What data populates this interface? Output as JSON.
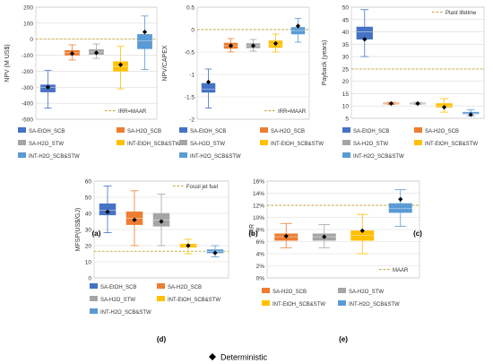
{
  "figure": {
    "deterministic_label": "Deterministic"
  },
  "colors": {
    "SA-EtOH_SCB": "#4472c4",
    "SA-H2O_SCB": "#ed7d31",
    "SA-H2O_STW": "#a5a5a5",
    "INT-EtOH_SCB&STW": "#ffc000",
    "INT-H2O_SCB&STW": "#5b9bd5",
    "reference_line": "#c9a227",
    "marker": "#000000"
  },
  "chart_data": [
    {
      "id": "a",
      "panel_label": "(a)",
      "type": "box",
      "ylabel": "NPV (M US$)",
      "ylim": [
        -500,
        200
      ],
      "yticks": [
        -500,
        -400,
        -300,
        -200,
        -100,
        0,
        100,
        200
      ],
      "reference": {
        "label": "IRR=MAAR",
        "value": 0
      },
      "series": [
        {
          "name": "SA-EtOH_SCB",
          "min": -430,
          "q1": -330,
          "median": -300,
          "q3": -285,
          "max": -195,
          "deterministic": -300
        },
        {
          "name": "SA-H2O_SCB",
          "min": -130,
          "q1": -100,
          "median": -85,
          "q3": -70,
          "max": -35,
          "deterministic": -90
        },
        {
          "name": "SA-H2O_STW",
          "min": -120,
          "q1": -95,
          "median": -80,
          "q3": -65,
          "max": -30,
          "deterministic": -85
        },
        {
          "name": "INT-EtOH_SCB&STW",
          "min": -310,
          "q1": -200,
          "median": -170,
          "q3": -140,
          "max": -45,
          "deterministic": -160
        },
        {
          "name": "INT-H2O_SCB&STW",
          "min": -190,
          "q1": -60,
          "median": -10,
          "q3": 30,
          "max": 145,
          "deterministic": 45
        }
      ]
    },
    {
      "id": "b",
      "panel_label": "(b)",
      "type": "box",
      "ylabel": "NPV/CAPEX",
      "ylim": [
        -2,
        0.5
      ],
      "yticks": [
        -2,
        -1.5,
        -1,
        -0.5,
        0,
        0.5
      ],
      "reference": {
        "label": "IRR=MAAR",
        "value": 0
      },
      "series": [
        {
          "name": "SA-EtOH_SCB",
          "min": -1.75,
          "q1": -1.4,
          "median": -1.33,
          "q3": -1.2,
          "max": -0.88,
          "deterministic": -1.17
        },
        {
          "name": "SA-H2O_SCB",
          "min": -0.5,
          "q1": -0.42,
          "median": -0.36,
          "q3": -0.3,
          "max": -0.2,
          "deterministic": -0.36
        },
        {
          "name": "SA-H2O_STW",
          "min": -0.48,
          "q1": -0.41,
          "median": -0.36,
          "q3": -0.31,
          "max": -0.22,
          "deterministic": -0.36
        },
        {
          "name": "INT-EtOH_SCB&STW",
          "min": -0.5,
          "q1": -0.4,
          "median": -0.34,
          "q3": -0.25,
          "max": -0.1,
          "deterministic": -0.31
        },
        {
          "name": "INT-H2O_SCB&STW",
          "min": -0.28,
          "q1": -0.1,
          "median": -0.02,
          "q3": 0.05,
          "max": 0.25,
          "deterministic": 0.08
        }
      ]
    },
    {
      "id": "c",
      "panel_label": "(c)",
      "type": "box",
      "ylabel": "Payback (years)",
      "ylim": [
        5,
        50
      ],
      "yticks": [
        5,
        10,
        15,
        20,
        25,
        30,
        35,
        40,
        45,
        50
      ],
      "reference": {
        "label": "Plant lifetime",
        "value": 25
      },
      "series": [
        {
          "name": "SA-EtOH_SCB",
          "min": 30,
          "q1": 37,
          "median": 40,
          "q3": 42,
          "max": 49,
          "deterministic": 37
        },
        {
          "name": "SA-H2O_SCB",
          "min": 10.6,
          "q1": 10.8,
          "median": 11,
          "q3": 11.2,
          "max": 11.5,
          "deterministic": 11
        },
        {
          "name": "SA-H2O_STW",
          "min": 10.6,
          "q1": 10.8,
          "median": 11,
          "q3": 11.2,
          "max": 11.5,
          "deterministic": 11
        },
        {
          "name": "INT-EtOH_SCB&STW",
          "min": 7.5,
          "q1": 9.5,
          "median": 10,
          "q3": 11,
          "max": 13,
          "deterministic": 9.5
        },
        {
          "name": "INT-H2O_SCB&STW",
          "min": 6,
          "q1": 6.8,
          "median": 7,
          "q3": 7.5,
          "max": 8.5,
          "deterministic": 6.5
        }
      ]
    },
    {
      "id": "d",
      "panel_label": "(d)",
      "type": "box",
      "ylabel": "MFSP(US$/GJ)",
      "ylim": [
        0,
        60
      ],
      "yticks": [
        0,
        10,
        20,
        30,
        40,
        50,
        60
      ],
      "reference": {
        "label": "Fossil jet fuel",
        "value": 16.5
      },
      "series": [
        {
          "name": "SA-EtOH_SCB",
          "min": 28,
          "q1": 39,
          "median": 42,
          "q3": 46,
          "max": 57,
          "deterministic": 41
        },
        {
          "name": "SA-H2O_SCB",
          "min": 20,
          "q1": 33,
          "median": 37,
          "q3": 41,
          "max": 54,
          "deterministic": 36
        },
        {
          "name": "SA-H2O_STW",
          "min": 20,
          "q1": 32,
          "median": 36,
          "q3": 40,
          "max": 52,
          "deterministic": 35
        },
        {
          "name": "INT-EtOH_SCB&STW",
          "min": 15,
          "q1": 19,
          "median": 20,
          "q3": 21,
          "max": 24,
          "deterministic": 20
        },
        {
          "name": "INT-H2O_SCB&STW",
          "min": 13,
          "q1": 15.5,
          "median": 16.5,
          "q3": 17.5,
          "max": 20,
          "deterministic": 15.5
        }
      ]
    },
    {
      "id": "e",
      "panel_label": "(e)",
      "type": "box",
      "ylabel": "IRR",
      "ylim": [
        0,
        16
      ],
      "yticks": [
        "0%",
        "2%",
        "4%",
        "6%",
        "8%",
        "10%",
        "12%",
        "14%",
        "16%"
      ],
      "ytick_values": [
        0,
        2,
        4,
        6,
        8,
        10,
        12,
        14,
        16
      ],
      "reference": {
        "label": "MAAR",
        "value": 12
      },
      "series": [
        {
          "name": "SA-H2O_SCB",
          "min": 5,
          "q1": 6.2,
          "median": 6.8,
          "q3": 7.3,
          "max": 9,
          "deterministic": 6.9
        },
        {
          "name": "SA-H2O_STW",
          "min": 5,
          "q1": 6.2,
          "median": 6.8,
          "q3": 7.3,
          "max": 8.8,
          "deterministic": 6.8
        },
        {
          "name": "INT-EtOH_SCB&STW",
          "min": 4,
          "q1": 6.2,
          "median": 7,
          "q3": 7.8,
          "max": 10.5,
          "deterministic": 7.8
        },
        {
          "name": "INT-H2O_SCB&STW",
          "min": 8.5,
          "q1": 10.8,
          "median": 11.5,
          "q3": 12.3,
          "max": 14.6,
          "deterministic": 13
        }
      ]
    }
  ]
}
